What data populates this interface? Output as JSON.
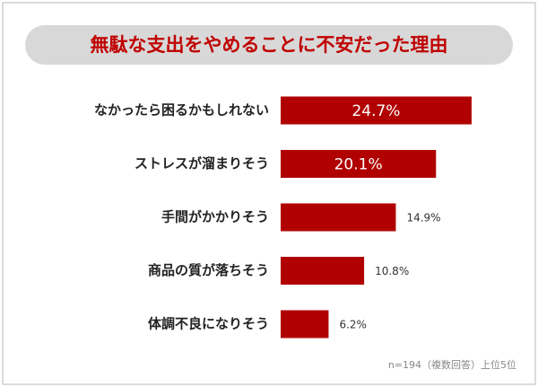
{
  "chart_data": {
    "type": "bar",
    "orientation": "horizontal",
    "title": "無駄な支出をやめることに不安だった理由",
    "categories": [
      "なかったら困るかもしれない",
      "ストレスが溜まりそう",
      "手間がかかりそう",
      "商品の質が落ちそう",
      "体調不良になりそう"
    ],
    "values": [
      24.7,
      20.1,
      14.9,
      10.8,
      6.2
    ],
    "value_labels": [
      "24.7%",
      "20.1%",
      "14.9%",
      "10.8%",
      "6.2%"
    ],
    "color": "#b00000",
    "note": "n=194（複数回答）上位5位"
  }
}
